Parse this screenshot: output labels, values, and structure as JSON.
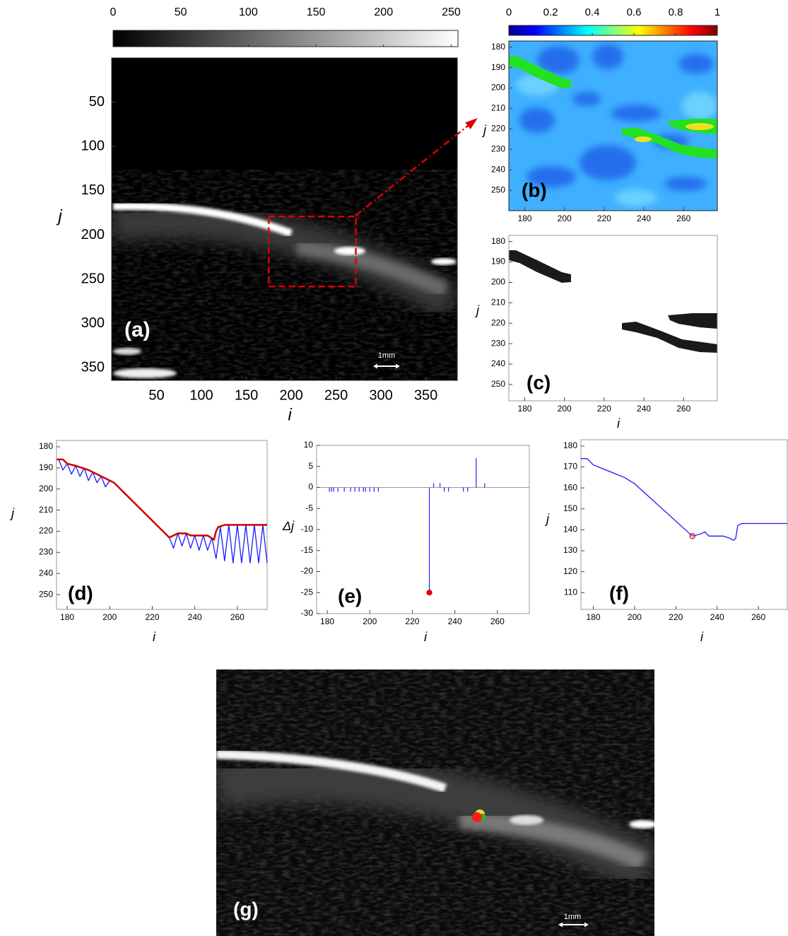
{
  "chart_data": [
    {
      "type": "image",
      "panel": "(a)",
      "colormap": "gray",
      "y_reversed": true,
      "colorbar": {
        "clim": [
          0,
          255
        ],
        "ticks": [
          0,
          50,
          100,
          150,
          200,
          250
        ]
      },
      "xlim": [
        0,
        385
      ],
      "ylim": [
        0,
        364
      ],
      "xticks": [
        50,
        100,
        150,
        200,
        250,
        300,
        350
      ],
      "yticks": [
        50,
        100,
        150,
        200,
        250,
        300,
        350
      ],
      "xlabel": "i",
      "ylabel": "j",
      "scale_bar": "1mm",
      "roi": {
        "i": [
          175,
          272
        ],
        "j": [
          179,
          258
        ]
      }
    },
    {
      "type": "heatmap",
      "panel": "(b)",
      "colormap": "jet",
      "y_reversed": true,
      "colorbar": {
        "clim": [
          0,
          1
        ],
        "ticks": [
          0,
          0.2,
          0.4,
          0.6,
          0.8,
          1
        ]
      },
      "xlim": [
        172,
        277
      ],
      "ylim": [
        177,
        260
      ],
      "xticks": [
        180,
        200,
        220,
        240,
        260
      ],
      "yticks": [
        180,
        190,
        200,
        210,
        220,
        230,
        240,
        250
      ],
      "ylabel": "j"
    },
    {
      "type": "mask",
      "panel": "(c)",
      "y_reversed": true,
      "xlim": [
        172,
        277
      ],
      "ylim": [
        177,
        258
      ],
      "xticks": [
        180,
        200,
        220,
        240,
        260
      ],
      "yticks": [
        180,
        190,
        200,
        210,
        220,
        230,
        240,
        250
      ],
      "xlabel": "i",
      "ylabel": "j"
    },
    {
      "type": "line",
      "panel": "(d)",
      "y_reversed": true,
      "xlim": [
        175,
        274
      ],
      "ylim": [
        177,
        257
      ],
      "xticks": [
        180,
        200,
        220,
        240,
        260
      ],
      "yticks": [
        180,
        190,
        200,
        210,
        220,
        230,
        240,
        250
      ],
      "xlabel": "i",
      "ylabel": "j",
      "series": [
        {
          "style": "line",
          "color": "#1a1aff",
          "x": [
            176,
            178,
            180,
            182,
            184,
            186,
            188,
            190,
            192,
            194,
            196,
            198,
            200,
            202,
            204,
            206,
            208,
            210,
            212,
            214,
            216,
            218,
            220,
            222,
            224,
            226,
            228,
            230,
            232,
            234,
            236,
            238,
            240,
            242,
            244,
            246,
            248,
            250,
            252,
            254,
            256,
            258,
            260,
            262,
            264,
            266,
            268,
            270,
            272,
            274
          ],
          "values": [
            186,
            191,
            188,
            193,
            189,
            194,
            190,
            196,
            192,
            197,
            194,
            199,
            196,
            197,
            199,
            201,
            203,
            205,
            207,
            209,
            211,
            213,
            215,
            217,
            219,
            221,
            223,
            228,
            221,
            227,
            221,
            228,
            222,
            229,
            222,
            229,
            223,
            233,
            218,
            234,
            217,
            235,
            217,
            235,
            217,
            235,
            217,
            235,
            217,
            235
          ]
        },
        {
          "style": "thick-line",
          "color": "#cc0000",
          "x": [
            175,
            178,
            180,
            184,
            190,
            196,
            200,
            202,
            228,
            232,
            236,
            238,
            246,
            249,
            250,
            251,
            254,
            274
          ],
          "values": [
            186,
            186,
            188,
            189,
            191,
            194,
            196,
            197,
            223,
            221,
            221,
            222,
            222,
            224,
            220,
            218,
            217,
            217
          ]
        }
      ]
    },
    {
      "type": "stem",
      "panel": "(e)",
      "y_reversed": false,
      "xlim": [
        175,
        275
      ],
      "ylim": [
        -30,
        10
      ],
      "xticks": [
        180,
        200,
        220,
        240,
        260
      ],
      "yticks": [
        10,
        5,
        0,
        -5,
        -10,
        -15,
        -20,
        -25,
        -30
      ],
      "xlabel": "i",
      "ylabel": "Δj",
      "series": [
        {
          "style": "stem",
          "color": "#3333ff",
          "x": [
            181,
            182,
            183,
            185,
            188,
            191,
            193,
            195,
            197,
            198,
            200,
            202,
            204,
            228,
            230,
            233,
            235,
            237,
            244,
            246,
            250,
            254
          ],
          "values": [
            -1,
            -1,
            -1,
            -1,
            -1,
            -1,
            -1,
            -1,
            -1,
            -1,
            -1,
            -1,
            -1,
            -25,
            1,
            1,
            -1,
            -1,
            -1,
            -1,
            7,
            1
          ]
        },
        {
          "style": "dot",
          "color": "#e00000",
          "x": [
            228
          ],
          "values": [
            -25
          ]
        }
      ]
    },
    {
      "type": "line",
      "panel": "(f)",
      "y_reversed": false,
      "xlim": [
        174,
        274
      ],
      "ylim": [
        102,
        183
      ],
      "xticks": [
        180,
        200,
        220,
        240,
        260
      ],
      "yticks": [
        110,
        120,
        130,
        140,
        150,
        160,
        170,
        180
      ],
      "xlabel": "i",
      "ylabel": "j",
      "series": [
        {
          "style": "line",
          "color": "#1a1aff",
          "x": [
            174,
            177,
            180,
            185,
            190,
            195,
            200,
            228,
            232,
            234,
            236,
            240,
            243,
            246,
            248,
            249,
            250,
            252,
            274
          ],
          "values": [
            174,
            174,
            171,
            169,
            167,
            165,
            162,
            137,
            138,
            139,
            137,
            137,
            137,
            136,
            135,
            136,
            142,
            143,
            143
          ]
        },
        {
          "style": "circle",
          "color": "#e00000",
          "x": [
            228
          ],
          "values": [
            137
          ]
        }
      ]
    },
    {
      "type": "image",
      "panel": "(g)",
      "scale_bar": "1mm"
    }
  ]
}
